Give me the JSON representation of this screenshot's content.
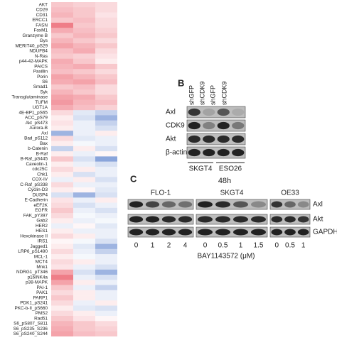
{
  "heatmap": {
    "rows": [
      {
        "label": "AKT",
        "values": [
          0.3,
          0.25,
          0.2
        ]
      },
      {
        "label": "CD29",
        "values": [
          0.35,
          0.3,
          0.2
        ]
      },
      {
        "label": "CD31",
        "values": [
          0.4,
          0.3,
          0.15
        ]
      },
      {
        "label": "ERCC1",
        "values": [
          0.3,
          0.35,
          0.2
        ]
      },
      {
        "label": "FASN",
        "values": [
          0.7,
          0.3,
          0.2
        ]
      },
      {
        "label": "FoxM1",
        "values": [
          0.45,
          0.35,
          0.25
        ]
      },
      {
        "label": "Granzyme B",
        "values": [
          0.3,
          0.4,
          0.3
        ]
      },
      {
        "label": "Gys",
        "values": [
          0.4,
          0.3,
          0.2
        ]
      },
      {
        "label": "MERIT40_pS29",
        "values": [
          0.5,
          0.4,
          0.3
        ]
      },
      {
        "label": "NDUFB4",
        "values": [
          0.35,
          0.45,
          0.2
        ]
      },
      {
        "label": "N-Ras",
        "values": [
          0.3,
          0.25,
          0.15
        ]
      },
      {
        "label": "p44-42-MAPK",
        "values": [
          0.45,
          0.3,
          0.1
        ]
      },
      {
        "label": "PAICS",
        "values": [
          0.4,
          0.45,
          0.3
        ]
      },
      {
        "label": "Paxillin",
        "values": [
          0.35,
          0.3,
          0.2
        ]
      },
      {
        "label": "Porin",
        "values": [
          0.5,
          0.4,
          0.3
        ]
      },
      {
        "label": "S6",
        "values": [
          0.45,
          0.5,
          0.35
        ]
      },
      {
        "label": "Smad1",
        "values": [
          0.3,
          0.35,
          0.2
        ]
      },
      {
        "label": "Syk",
        "values": [
          0.4,
          0.3,
          0.2
        ]
      },
      {
        "label": "Transglutaminase",
        "values": [
          0.5,
          0.45,
          0.3
        ]
      },
      {
        "label": "TUFM",
        "values": [
          0.55,
          0.4,
          0.35
        ]
      },
      {
        "label": "UGT1A",
        "values": [
          0.45,
          0.35,
          0.25
        ]
      },
      {
        "label": "4E-BP1_pS65",
        "values": [
          0.2,
          -0.15,
          -0.3
        ]
      },
      {
        "label": "ACC_pS79",
        "values": [
          0.1,
          -0.2,
          -0.5
        ]
      },
      {
        "label": "Akt_pS473",
        "values": [
          0.15,
          -0.1,
          -0.3
        ]
      },
      {
        "label": "Aurora-B",
        "values": [
          0.1,
          -0.1,
          -0.2
        ]
      },
      {
        "label": "Axl",
        "values": [
          -0.5,
          -0.1,
          0.1
        ]
      },
      {
        "label": "Bad_pS112",
        "values": [
          0.2,
          -0.15,
          -0.1
        ]
      },
      {
        "label": "Bax",
        "values": [
          0.1,
          -0.05,
          -0.1
        ]
      },
      {
        "label": "b-Catenin",
        "values": [
          -0.3,
          0.1,
          -0.2
        ]
      },
      {
        "label": "B-Raf",
        "values": [
          0.1,
          -0.1,
          0.05
        ]
      },
      {
        "label": "B-Raf_pS445",
        "values": [
          0.3,
          -0.2,
          -0.6
        ]
      },
      {
        "label": "Caveolin-1",
        "values": [
          0.1,
          -0.1,
          -0.2
        ]
      },
      {
        "label": "cdc25C",
        "values": [
          0.2,
          0.1,
          -0.1
        ]
      },
      {
        "label": "Chk1",
        "values": [
          0.1,
          -0.2,
          -0.1
        ]
      },
      {
        "label": "COX-IV",
        "values": [
          -0.1,
          0.1,
          -0.2
        ]
      },
      {
        "label": "C-Raf_pS338",
        "values": [
          0.2,
          -0.1,
          -0.1
        ]
      },
      {
        "label": "Cyclin-D3",
        "values": [
          0.1,
          0.05,
          -0.15
        ]
      },
      {
        "label": "DUSP4",
        "values": [
          -0.2,
          -0.5,
          -0.2
        ]
      },
      {
        "label": "E-Cadherin",
        "values": [
          0.15,
          -0.1,
          0.1
        ]
      },
      {
        "label": "eEF2K",
        "values": [
          0.2,
          -0.2,
          -0.1
        ]
      },
      {
        "label": "EGFR",
        "values": [
          0.3,
          -0.1,
          -0.2
        ]
      },
      {
        "label": "FAK_pY397",
        "values": [
          0.2,
          -0.05,
          -0.1
        ]
      },
      {
        "label": "Gab2",
        "values": [
          0.1,
          -0.1,
          -0.05
        ]
      },
      {
        "label": "HER2",
        "values": [
          -0.1,
          0.05,
          -0.15
        ]
      },
      {
        "label": "HES1",
        "values": [
          0.1,
          -0.1,
          -0.1
        ]
      },
      {
        "label": "Hexokinase II",
        "values": [
          0.2,
          0.1,
          -0.1
        ]
      },
      {
        "label": "IRS1",
        "values": [
          0.05,
          -0.05,
          -0.2
        ]
      },
      {
        "label": "Jagged1",
        "values": [
          0.1,
          -0.15,
          -0.5
        ]
      },
      {
        "label": "LRP6_pS1490",
        "values": [
          0.2,
          -0.1,
          -0.3
        ]
      },
      {
        "label": "MCL-1",
        "values": [
          0.1,
          -0.05,
          -0.1
        ]
      },
      {
        "label": "MCT4",
        "values": [
          0.2,
          0.1,
          -0.1
        ]
      },
      {
        "label": "Mnk1",
        "values": [
          0.15,
          -0.1,
          -0.2
        ]
      },
      {
        "label": "NDRG1_pT346",
        "values": [
          0.5,
          -0.2,
          -0.5
        ]
      },
      {
        "label": "p16INK4a",
        "values": [
          0.7,
          -0.1,
          -0.2
        ]
      },
      {
        "label": "p38-MAPK",
        "values": [
          0.5,
          0.1,
          -0.1
        ]
      },
      {
        "label": "PAI-1",
        "values": [
          0.3,
          -0.1,
          -0.3
        ]
      },
      {
        "label": "PAK1",
        "values": [
          0.2,
          0.1,
          -0.1
        ]
      },
      {
        "label": "PARP1",
        "values": [
          0.3,
          0.1,
          -0.1
        ]
      },
      {
        "label": "PDK1_pS241",
        "values": [
          0.2,
          -0.1,
          0.1
        ]
      },
      {
        "label": "PKC-b-II_pS660",
        "values": [
          0.1,
          -0.15,
          -0.2
        ]
      },
      {
        "label": "PMS2",
        "values": [
          0.2,
          0.1,
          -0.1
        ]
      },
      {
        "label": "Rad51",
        "values": [
          0.3,
          0.15,
          0.05
        ]
      },
      {
        "label": "S6_pS807_S811",
        "values": [
          0.4,
          0.3,
          0.2
        ]
      },
      {
        "label": "S6_pS235_S236",
        "values": [
          0.45,
          0.3,
          0.25
        ]
      },
      {
        "label": "S6_pS240_S244",
        "values": [
          0.5,
          0.35,
          0.3
        ]
      }
    ]
  },
  "panel_b": {
    "letter": "B",
    "columns": [
      "shGFP",
      "shCDK9",
      "shGFP",
      "shCDK9"
    ],
    "rows": [
      "Axl",
      "CDK9",
      "Akt",
      "β-actin"
    ],
    "groups": [
      "SKGT4",
      "ESO26"
    ]
  },
  "panel_c": {
    "letter": "C",
    "time": "48h",
    "groups": [
      {
        "name": "FLO-1",
        "doses": [
          "0",
          "1",
          "2",
          "4"
        ]
      },
      {
        "name": "SKGT4",
        "doses": [
          "0",
          "0.5",
          "1",
          "1.5"
        ]
      },
      {
        "name": "OE33",
        "doses": [
          "0",
          "0.5",
          "1"
        ]
      }
    ],
    "rows": [
      "Axl",
      "Akt",
      "GAPDH"
    ],
    "xlabel": "BAY1143572 (μM)"
  }
}
